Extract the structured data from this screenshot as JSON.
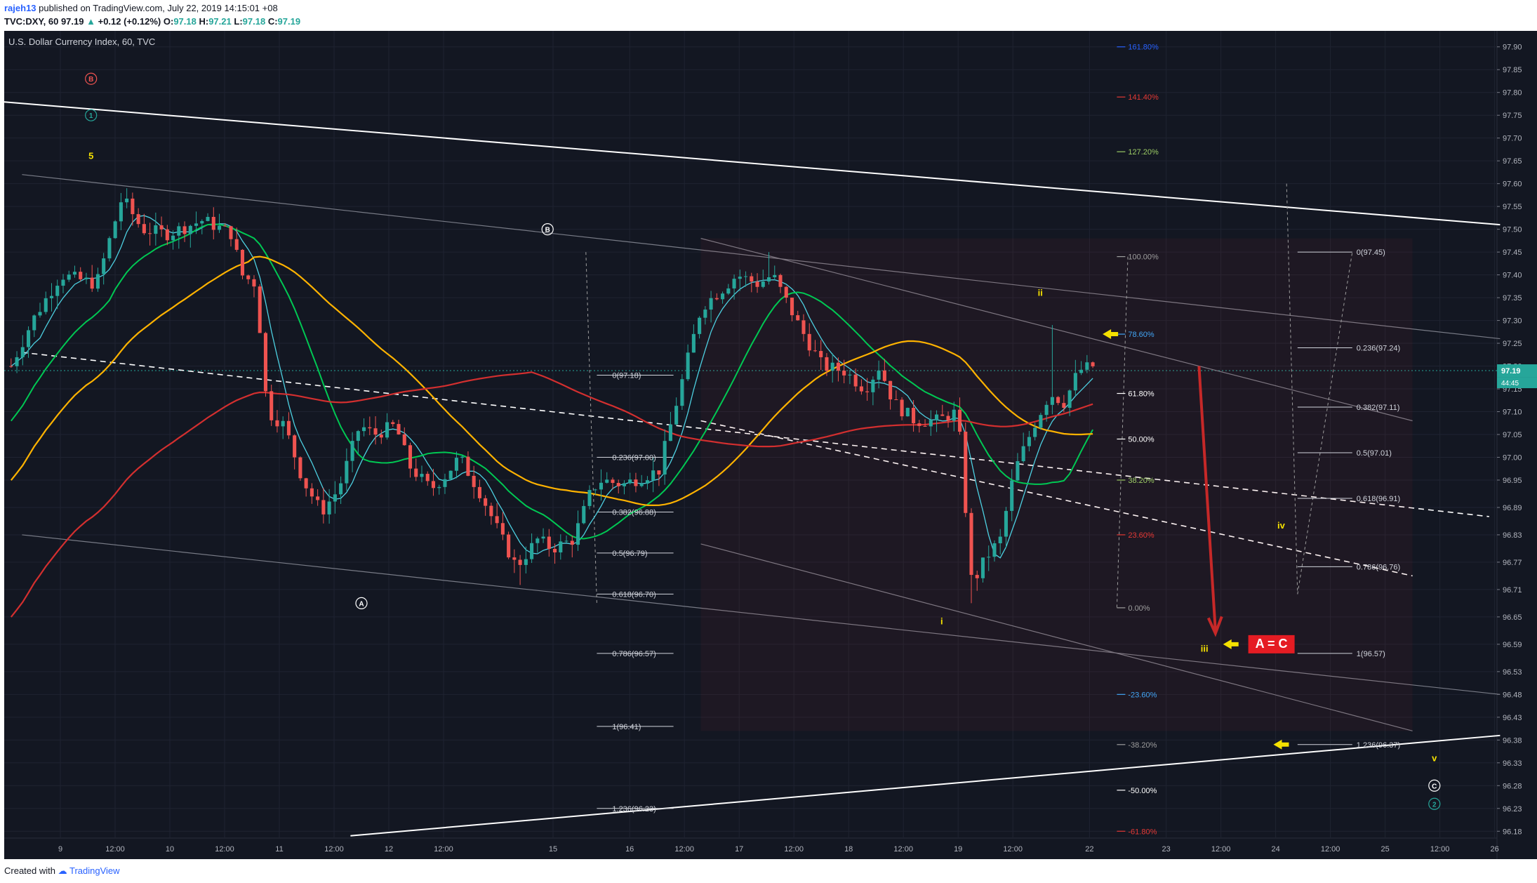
{
  "header": {
    "author": "rajeh13",
    "published_text": "published on TradingView.com, July 22, 2019 14:15:01 +08",
    "symbol": "TVC:DXY, 60",
    "last": "97.19",
    "change": "+0.12 (+0.12%)",
    "o_label": "O:",
    "o_value": "97.18",
    "h_label": "H:",
    "h_value": "97.21",
    "l_label": "L:",
    "l_value": "97.18",
    "c_label": "C:",
    "c_value": "97.19"
  },
  "footer": {
    "created_with": "Created with",
    "brand": "TradingView"
  },
  "chart_data": {
    "type": "candlestick",
    "title": "U.S. Dollar Currency Index, 60, TVC",
    "price_labels": [
      "97.90",
      "97.85",
      "97.80",
      "97.75",
      "97.70",
      "97.65",
      "97.60",
      "97.55",
      "97.50",
      "97.45",
      "97.40",
      "97.35",
      "97.30",
      "97.25",
      "97.20",
      "97.15",
      "97.10",
      "97.05",
      "97.00",
      "96.95",
      "96.89",
      "96.83",
      "96.77",
      "96.71",
      "96.65",
      "96.59",
      "96.53",
      "96.48",
      "96.43",
      "96.38",
      "96.33",
      "96.28",
      "96.23",
      "96.18"
    ],
    "price_values": [
      97.9,
      97.85,
      97.8,
      97.75,
      97.7,
      97.65,
      97.6,
      97.55,
      97.5,
      97.45,
      97.4,
      97.35,
      97.3,
      97.25,
      97.2,
      97.15,
      97.1,
      97.05,
      97.0,
      96.95,
      96.89,
      96.83,
      96.77,
      96.71,
      96.65,
      96.59,
      96.53,
      96.48,
      96.43,
      96.38,
      96.33,
      96.28,
      96.23,
      96.18
    ],
    "ylim": [
      96.18,
      97.9
    ],
    "current_price": "97.19",
    "countdown": "44:45",
    "time_labels": [
      {
        "t": 0.5,
        "label": "9"
      },
      {
        "t": 1.0,
        "label": "12:00"
      },
      {
        "t": 1.5,
        "label": "10"
      },
      {
        "t": 2.0,
        "label": "12:00"
      },
      {
        "t": 2.5,
        "label": "11"
      },
      {
        "t": 3.0,
        "label": "12:00"
      },
      {
        "t": 3.5,
        "label": "12"
      },
      {
        "t": 4.0,
        "label": "12:00"
      },
      {
        "t": 5.0,
        "label": "15"
      },
      {
        "t": 5.7,
        "label": "16"
      },
      {
        "t": 6.2,
        "label": "12:00"
      },
      {
        "t": 6.7,
        "label": "17"
      },
      {
        "t": 7.2,
        "label": "12:00"
      },
      {
        "t": 7.7,
        "label": "18"
      },
      {
        "t": 8.2,
        "label": "12:00"
      },
      {
        "t": 8.7,
        "label": "19"
      },
      {
        "t": 9.2,
        "label": "12:00"
      },
      {
        "t": 9.9,
        "label": "22"
      },
      {
        "t": 10.6,
        "label": "23"
      },
      {
        "t": 11.1,
        "label": "12:00"
      },
      {
        "t": 11.6,
        "label": "24"
      },
      {
        "t": 12.1,
        "label": "12:00"
      },
      {
        "t": 12.6,
        "label": "25"
      },
      {
        "t": 13.1,
        "label": "12:00"
      },
      {
        "t": 13.6,
        "label": "26"
      }
    ],
    "fib_a": {
      "levels": [
        {
          "label": "0(97.18)",
          "p": 97.18
        },
        {
          "label": "0.236(97.00)",
          "p": 97.0
        },
        {
          "label": "0.382(96.88)",
          "p": 96.88
        },
        {
          "label": "0.5(96.79)",
          "p": 96.79
        },
        {
          "label": "0.618(96.70)",
          "p": 96.7
        },
        {
          "label": "0.786(96.57)",
          "p": 96.57
        },
        {
          "label": "1(96.41)",
          "p": 96.41
        },
        {
          "label": "1.236(96.23)",
          "p": 96.23
        }
      ]
    },
    "fib_b": {
      "levels": [
        {
          "label": "161.80%",
          "p": 97.9,
          "color": "#2962ff"
        },
        {
          "label": "141.40%",
          "p": 97.79,
          "color": "#e53935"
        },
        {
          "label": "127.20%",
          "p": 97.67,
          "color": "#9ccc65"
        },
        {
          "label": "100.00%",
          "p": 97.44,
          "color": "#9e9e9e"
        },
        {
          "label": "78.60%",
          "p": 97.27,
          "color": "#42a5f5"
        },
        {
          "label": "61.80%",
          "p": 97.14,
          "color": "#ffffff"
        },
        {
          "label": "50.00%",
          "p": 97.04,
          "color": "#ffffff"
        },
        {
          "label": "38.20%",
          "p": 96.95,
          "color": "#9ccc65"
        },
        {
          "label": "23.60%",
          "p": 96.83,
          "color": "#e53935"
        },
        {
          "label": "0.00%",
          "p": 96.67,
          "color": "#9e9e9e"
        },
        {
          "label": "-23.60%",
          "p": 96.48,
          "color": "#42a5f5"
        },
        {
          "label": "-38.20%",
          "p": 96.37,
          "color": "#9e9e9e"
        },
        {
          "label": "-50.00%",
          "p": 96.27,
          "color": "#ffffff"
        },
        {
          "label": "-61.80%",
          "p": 96.18,
          "color": "#e53935"
        }
      ]
    },
    "fib_c": {
      "levels": [
        {
          "label": "0(97.45)",
          "p": 97.45
        },
        {
          "label": "0.236(97.24)",
          "p": 97.24
        },
        {
          "label": "0.382(97.11)",
          "p": 97.11
        },
        {
          "label": "0.5(97.01)",
          "p": 97.01
        },
        {
          "label": "0.618(96.91)",
          "p": 96.91
        },
        {
          "label": "0.786(96.76)",
          "p": 96.76
        },
        {
          "label": "1(96.57)",
          "p": 96.57
        },
        {
          "label": "1.236(96.37)",
          "p": 96.37
        }
      ]
    },
    "wave_labels": {
      "red_b": "B",
      "green_1": "1",
      "yellow_5": "5",
      "white_b": "B",
      "white_a": "A",
      "yellow_i": "i",
      "yellow_ii": "ii",
      "yellow_iii": "iii",
      "yellow_iv": "iv",
      "yellow_v": "v",
      "white_c": "C",
      "green_2": "2"
    },
    "callout": "A = C",
    "colors": {
      "background": "#131722",
      "up": "#26a69a",
      "down": "#ef5350",
      "ma_cyan": "#4dd0e1",
      "ma_green": "#00c853",
      "ma_orange": "#ffb300",
      "ma_red": "#d32f2f",
      "wave_yellow": "#f5e100",
      "arrow_red": "#c62828"
    }
  }
}
